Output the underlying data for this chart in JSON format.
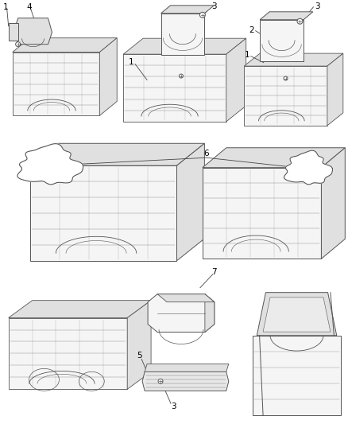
{
  "background_color": "#ffffff",
  "line_color": "#555555",
  "fill_color": "#f5f5f5",
  "fill_dark": "#e0e0e0",
  "fig_width": 4.38,
  "fig_height": 5.33,
  "dpi": 100
}
